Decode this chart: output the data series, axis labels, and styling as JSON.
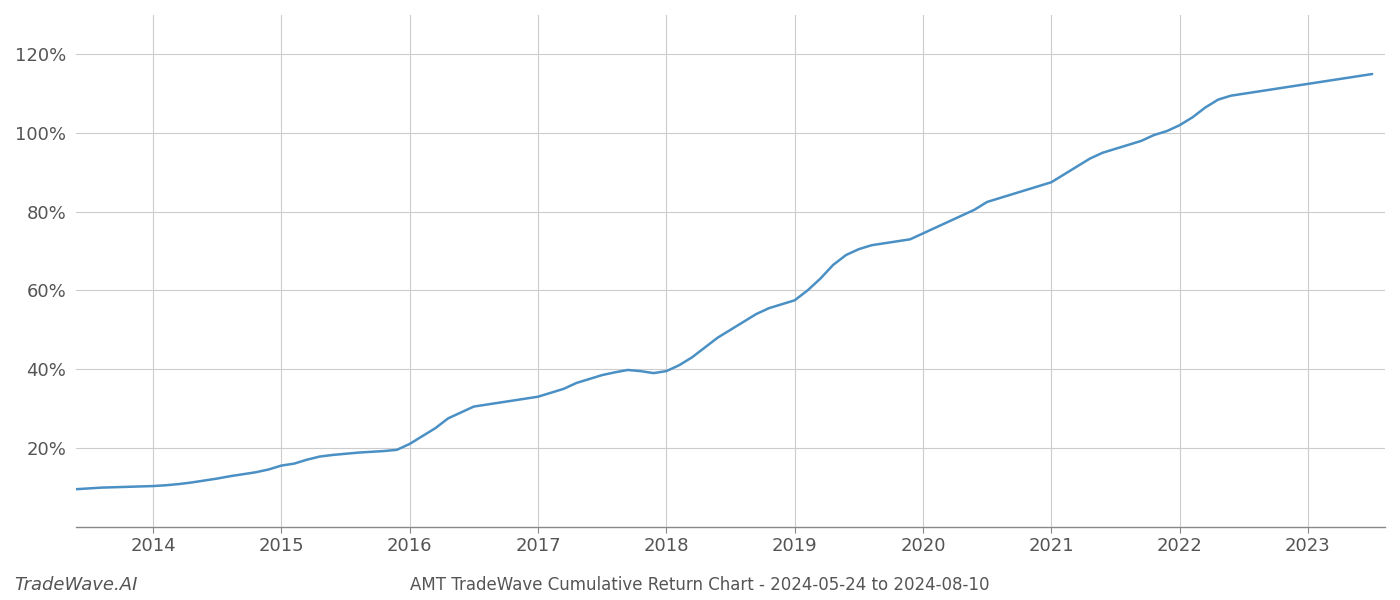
{
  "title": "AMT TradeWave Cumulative Return Chart - 2024-05-24 to 2024-08-10",
  "watermark": "TradeWave.AI",
  "line_color": "#4a90c4",
  "line_width": 1.8,
  "background_color": "#ffffff",
  "grid_color": "#cccccc",
  "x_values": [
    2013.4,
    2013.5,
    2013.6,
    2013.7,
    2013.8,
    2013.9,
    2014.0,
    2014.1,
    2014.2,
    2014.3,
    2014.4,
    2014.5,
    2014.6,
    2014.7,
    2014.8,
    2014.9,
    2015.0,
    2015.1,
    2015.2,
    2015.3,
    2015.4,
    2015.5,
    2015.6,
    2015.7,
    2015.8,
    2015.9,
    2016.0,
    2016.1,
    2016.2,
    2016.3,
    2016.4,
    2016.5,
    2016.6,
    2016.7,
    2016.8,
    2016.9,
    2017.0,
    2017.1,
    2017.2,
    2017.3,
    2017.4,
    2017.5,
    2017.6,
    2017.7,
    2017.8,
    2017.9,
    2018.0,
    2018.1,
    2018.2,
    2018.3,
    2018.4,
    2018.5,
    2018.6,
    2018.7,
    2018.8,
    2018.9,
    2019.0,
    2019.1,
    2019.2,
    2019.3,
    2019.4,
    2019.5,
    2019.6,
    2019.7,
    2019.8,
    2019.9,
    2020.0,
    2020.1,
    2020.2,
    2020.3,
    2020.4,
    2020.5,
    2020.6,
    2020.7,
    2020.8,
    2020.9,
    2021.0,
    2021.1,
    2021.2,
    2021.3,
    2021.4,
    2021.5,
    2021.6,
    2021.7,
    2021.8,
    2021.9,
    2022.0,
    2022.1,
    2022.2,
    2022.3,
    2022.4,
    2022.5,
    2022.6,
    2022.7,
    2022.8,
    2022.9,
    2023.0,
    2023.1,
    2023.2,
    2023.3,
    2023.4,
    2023.5
  ],
  "y_values": [
    9.5,
    9.7,
    9.9,
    10.0,
    10.1,
    10.2,
    10.3,
    10.5,
    10.8,
    11.2,
    11.7,
    12.2,
    12.8,
    13.3,
    13.8,
    14.5,
    15.5,
    16.0,
    17.0,
    17.8,
    18.2,
    18.5,
    18.8,
    19.0,
    19.2,
    19.5,
    21.0,
    23.0,
    25.0,
    27.5,
    29.0,
    30.5,
    31.0,
    31.5,
    32.0,
    32.5,
    33.0,
    34.0,
    35.0,
    36.5,
    37.5,
    38.5,
    39.2,
    39.8,
    39.5,
    39.0,
    39.5,
    41.0,
    43.0,
    45.5,
    48.0,
    50.0,
    52.0,
    54.0,
    55.5,
    56.5,
    57.5,
    60.0,
    63.0,
    66.5,
    69.0,
    70.5,
    71.5,
    72.0,
    72.5,
    73.0,
    74.5,
    76.0,
    77.5,
    79.0,
    80.5,
    82.5,
    83.5,
    84.5,
    85.5,
    86.5,
    87.5,
    89.5,
    91.5,
    93.5,
    95.0,
    96.0,
    97.0,
    98.0,
    99.5,
    100.5,
    102.0,
    104.0,
    106.5,
    108.5,
    109.5,
    110.0,
    110.5,
    111.0,
    111.5,
    112.0,
    112.5,
    113.0,
    113.5,
    114.0,
    114.5,
    115.0
  ],
  "yticks": [
    20,
    40,
    60,
    80,
    100,
    120
  ],
  "xticks": [
    2014,
    2015,
    2016,
    2017,
    2018,
    2019,
    2020,
    2021,
    2022,
    2023
  ],
  "ylim": [
    0,
    130
  ],
  "xlim": [
    2013.4,
    2023.6
  ],
  "tick_color": "#555555",
  "tick_fontsize": 13,
  "title_fontsize": 12,
  "watermark_fontsize": 13,
  "spine_color": "#888888"
}
